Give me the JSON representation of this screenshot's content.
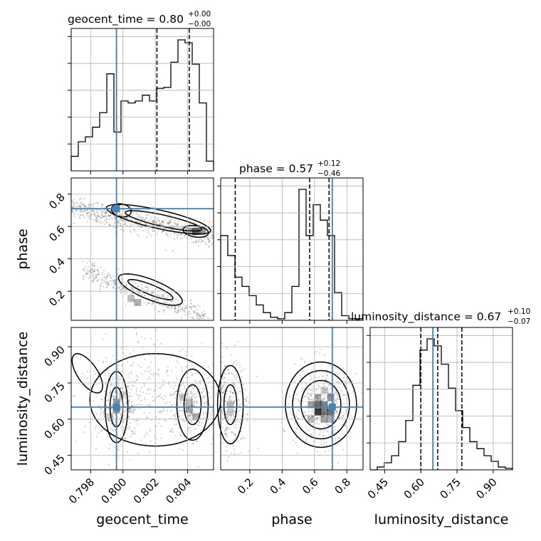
{
  "chart_data": {
    "type": "corner",
    "parameters": [
      "geocent_time",
      "phase",
      "luminosity_distance"
    ],
    "truths": {
      "geocent_time": 0.7996,
      "phase": 0.71,
      "luminosity_distance": 0.65
    },
    "titles": [
      {
        "text": "geocent_time = 0.80",
        "sup": "+0.00",
        "sub": "−0.00"
      },
      {
        "text": "phase = 0.57",
        "sup": "+0.12",
        "sub": "−0.46"
      },
      {
        "text": "luminosity_distance = 0.67",
        "sup": "+0.10",
        "sub": "−0.07"
      }
    ],
    "axis_labels": {
      "geocent_time": "geocent_time",
      "phase": "phase",
      "luminosity_distance": "luminosity_distance"
    },
    "ranges": {
      "geocent_time": [
        0.7968,
        0.8056
      ],
      "phase": [
        0.02,
        0.9
      ],
      "luminosity_distance": [
        0.39,
        0.98
      ]
    },
    "ticks": {
      "geocent_time": [
        "0.798",
        "0.800",
        "0.802",
        "0.804"
      ],
      "phase": [
        "0.2",
        "0.4",
        "0.6",
        "0.8"
      ],
      "luminosity_distance": [
        "0.45",
        "0.60",
        "0.75",
        "0.90"
      ]
    },
    "quantiles": {
      "geocent_time": [
        0.7996,
        0.8021,
        0.8041
      ],
      "phase": [
        0.11,
        0.57,
        0.69
      ],
      "luminosity_distance": [
        0.6,
        0.67,
        0.77
      ]
    },
    "hist_geocent_time": [
      0.15,
      0.3,
      0.35,
      0.45,
      0.6,
      1.0,
      0.4,
      0.72,
      0.7,
      0.72,
      0.78,
      0.72,
      0.85,
      0.86,
      1.12,
      1.35,
      1.32,
      1.1,
      0.7,
      0.1
    ],
    "hist_phase": [
      0.55,
      0.42,
      0.28,
      0.22,
      0.16,
      0.1,
      0.05,
      0.02,
      0.01,
      0.05,
      0.22,
      0.85,
      0.55,
      0.75,
      0.65,
      0.55,
      0.18,
      0.03,
      0.01,
      0.01
    ],
    "hist_luminosity_distance": [
      0.0,
      0.02,
      0.05,
      0.1,
      0.2,
      0.35,
      0.6,
      0.85,
      0.93,
      0.88,
      0.75,
      0.58,
      0.42,
      0.3,
      0.2,
      0.15,
      0.1,
      0.06,
      0.02,
      0.01
    ],
    "grid": true
  }
}
